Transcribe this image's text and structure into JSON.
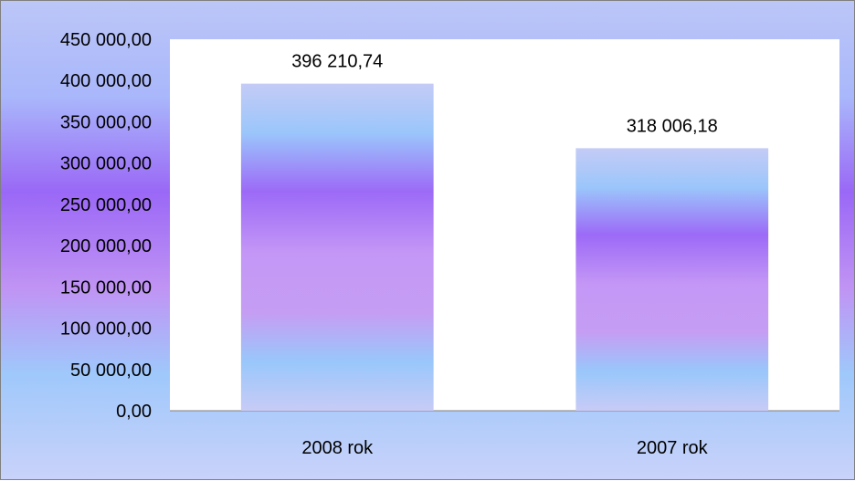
{
  "chart_data": {
    "type": "bar",
    "categories": [
      "2008 rok",
      "2007 rok"
    ],
    "values": [
      396210.74,
      318006.18
    ],
    "value_labels": [
      "396 210,74",
      "318 006,18"
    ],
    "y_ticks": [
      {
        "value": 0,
        "label": "0,00"
      },
      {
        "value": 50000,
        "label": "50 000,00"
      },
      {
        "value": 100000,
        "label": "100 000,00"
      },
      {
        "value": 150000,
        "label": "150 000,00"
      },
      {
        "value": 200000,
        "label": "200 000,00"
      },
      {
        "value": 250000,
        "label": "250 000,00"
      },
      {
        "value": 300000,
        "label": "300 000,00"
      },
      {
        "value": 350000,
        "label": "350 000,00"
      },
      {
        "value": 400000,
        "label": "400 000,00"
      },
      {
        "value": 450000,
        "label": "450 000,00"
      }
    ],
    "ylim": [
      0,
      450000
    ],
    "grid": false,
    "legend": "none"
  }
}
